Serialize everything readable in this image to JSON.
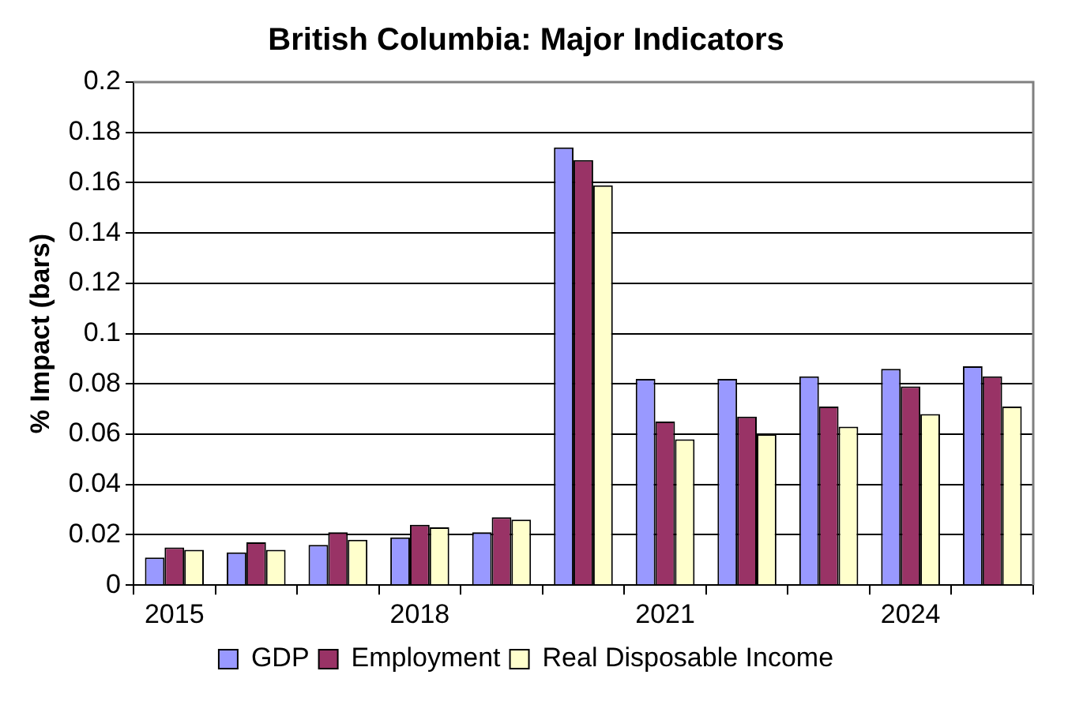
{
  "chart_data": {
    "type": "bar",
    "title": "British Columbia: Major Indicators",
    "ylabel": "% Impact (bars)",
    "categories": [
      "2015",
      null,
      null,
      "2018",
      null,
      null,
      "2021",
      null,
      null,
      "2024",
      null
    ],
    "series": [
      {
        "name": "GDP",
        "color": "#9999ff",
        "values": [
          0.011,
          0.013,
          0.016,
          0.019,
          0.021,
          0.174,
          0.082,
          0.082,
          0.083,
          0.086,
          0.087
        ]
      },
      {
        "name": "Employment",
        "color": "#993366",
        "values": [
          0.015,
          0.017,
          0.021,
          0.024,
          0.027,
          0.169,
          0.065,
          0.067,
          0.071,
          0.079,
          0.083
        ]
      },
      {
        "name": "Real Disposable Income",
        "color": "#ffffcc",
        "values": [
          0.014,
          0.014,
          0.018,
          0.023,
          0.026,
          0.159,
          0.058,
          0.06,
          0.063,
          0.068,
          0.071
        ]
      }
    ],
    "ylim": [
      0,
      0.2
    ],
    "yticks": [
      0,
      0.02,
      0.04,
      0.06,
      0.08,
      0.1,
      0.12,
      0.14,
      0.16,
      0.18,
      0.2
    ],
    "grid": "y",
    "legend": "bottom"
  }
}
